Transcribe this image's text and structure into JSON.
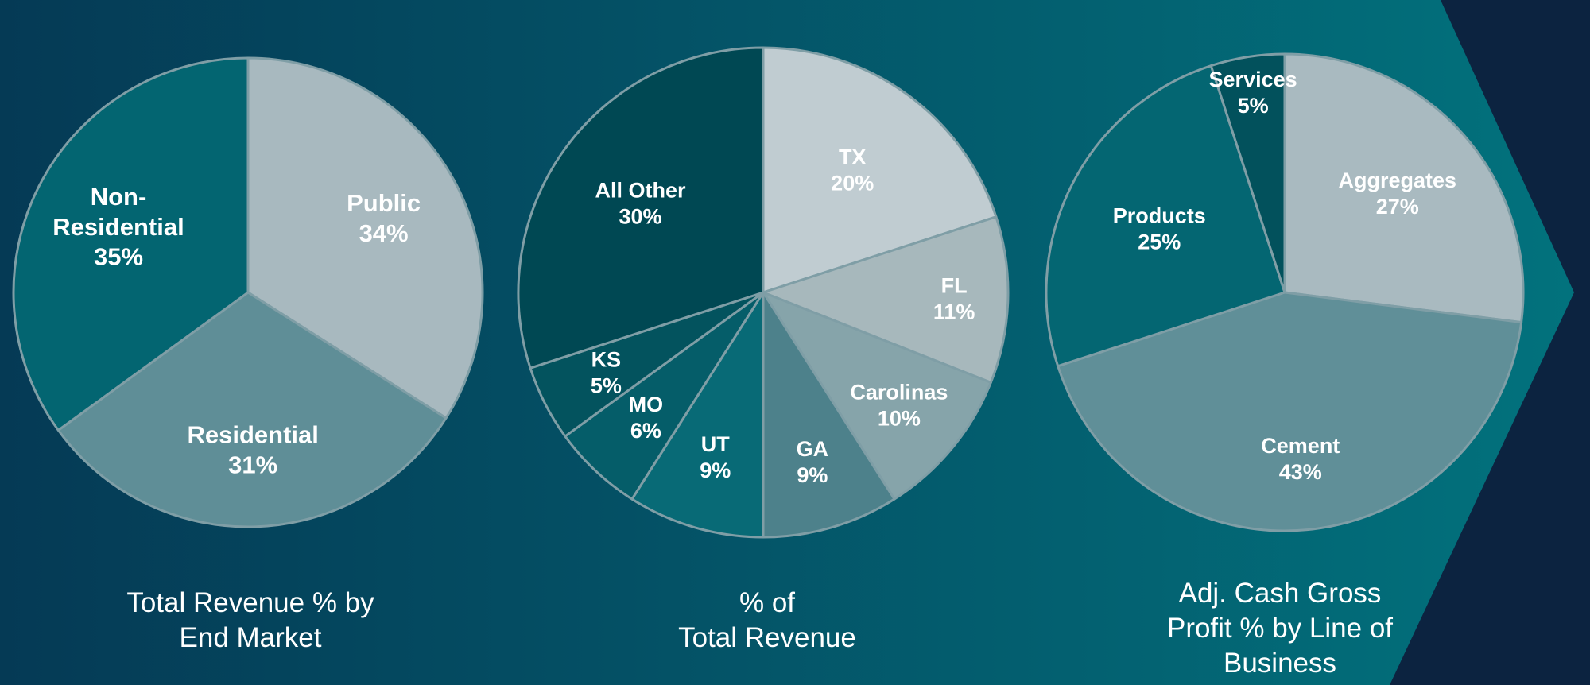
{
  "chart_data": [
    {
      "type": "pie",
      "title_lines": [
        "Total Revenue % by",
        "End Market"
      ],
      "slices": [
        {
          "label_lines": [
            "Public",
            "34%"
          ],
          "value": 34,
          "color": "#a8b9bf"
        },
        {
          "label_lines": [
            "Residential",
            "31%"
          ],
          "value": 31,
          "color": "#5f8e97"
        },
        {
          "label_lines": [
            "Non-",
            "Residential",
            "35%"
          ],
          "value": 35,
          "color": "#036571"
        }
      ]
    },
    {
      "type": "pie",
      "title_lines": [
        "% of",
        "Total Revenue"
      ],
      "slices": [
        {
          "label_lines": [
            "TX",
            "20%"
          ],
          "value": 20,
          "color": "#c0ccd1"
        },
        {
          "label_lines": [
            "FL",
            "11%"
          ],
          "value": 11,
          "color": "#a7b8bc"
        },
        {
          "label_lines": [
            "Carolinas",
            "10%"
          ],
          "value": 10,
          "color": "#86a4aa"
        },
        {
          "label_lines": [
            "GA",
            "9%"
          ],
          "value": 9,
          "color": "#4d818b"
        },
        {
          "label_lines": [
            "UT",
            "9%"
          ],
          "value": 9,
          "color": "#086a76"
        },
        {
          "label_lines": [
            "MO",
            "6%"
          ],
          "value": 6,
          "color": "#055d69"
        },
        {
          "label_lines": [
            "KS",
            "5%"
          ],
          "value": 5,
          "color": "#03535e"
        },
        {
          "label_lines": [
            "All Other",
            "30%"
          ],
          "value": 30,
          "color": "#004853"
        }
      ]
    },
    {
      "type": "pie",
      "title_lines": [
        "Adj. Cash Gross",
        "Profit % by Line of",
        "Business"
      ],
      "slices": [
        {
          "label_lines": [
            "Aggregates",
            "27%"
          ],
          "value": 27,
          "color": "#a9bac0"
        },
        {
          "label_lines": [
            "Cement",
            "43%"
          ],
          "value": 43,
          "color": "#608f98"
        },
        {
          "label_lines": [
            "Products",
            "25%"
          ],
          "value": 25,
          "color": "#046672"
        },
        {
          "label_lines": [
            "Services",
            "5%"
          ],
          "value": 5,
          "color": "#02515c"
        }
      ]
    }
  ],
  "colors": {
    "background_left": "#053a55",
    "background_right": "#02727d",
    "chevron": "#02727d",
    "navy": "#0c2340",
    "slice_border": "#7f9ea6",
    "text": "#ffffff"
  }
}
